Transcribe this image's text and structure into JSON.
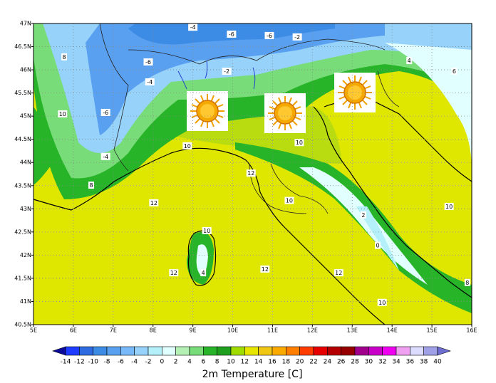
{
  "map": {
    "lonlim": [
      5,
      16
    ],
    "latlim": [
      40.5,
      47
    ],
    "grid": true,
    "lon_ticks": [
      {
        "value": 5,
        "label": "5E"
      },
      {
        "value": 6,
        "label": "6E"
      },
      {
        "value": 7,
        "label": "7E"
      },
      {
        "value": 8,
        "label": "8E"
      },
      {
        "value": 9,
        "label": "9E"
      },
      {
        "value": 10,
        "label": "10E"
      },
      {
        "value": 11,
        "label": "11E"
      },
      {
        "value": 12,
        "label": "12E"
      },
      {
        "value": 13,
        "label": "13E"
      },
      {
        "value": 14,
        "label": "14E"
      },
      {
        "value": 15,
        "label": "15E"
      },
      {
        "value": 16,
        "label": "16E"
      }
    ],
    "lat_ticks": [
      {
        "value": 40.5,
        "label": "40.5N"
      },
      {
        "value": 41,
        "label": "41N"
      },
      {
        "value": 41.5,
        "label": "41.5N"
      },
      {
        "value": 42,
        "label": "42N"
      },
      {
        "value": 42.5,
        "label": "42.5N"
      },
      {
        "value": 43,
        "label": "43N"
      },
      {
        "value": 43.5,
        "label": "43.5N"
      },
      {
        "value": 44,
        "label": "44N"
      },
      {
        "value": 44.5,
        "label": "44.5N"
      },
      {
        "value": 45,
        "label": "45N"
      },
      {
        "value": 45.5,
        "label": "45.5N"
      },
      {
        "value": 46,
        "label": "46N"
      },
      {
        "value": 46.5,
        "label": "46.5N"
      },
      {
        "value": 47,
        "label": "47N"
      }
    ],
    "contour_labels": [
      {
        "value": -4,
        "lon": 9.0,
        "lat": 46.92
      },
      {
        "value": -6,
        "lon": 9.97,
        "lat": 46.77
      },
      {
        "value": -6,
        "lon": 10.92,
        "lat": 46.74
      },
      {
        "value": -2,
        "lon": 11.62,
        "lat": 46.71
      },
      {
        "value": -2,
        "lon": 9.85,
        "lat": 45.97
      },
      {
        "value": -6,
        "lon": 7.88,
        "lat": 46.17
      },
      {
        "value": -4,
        "lon": 7.92,
        "lat": 45.74
      },
      {
        "value": -6,
        "lon": 6.81,
        "lat": 45.08
      },
      {
        "value": -4,
        "lon": 6.81,
        "lat": 44.13
      },
      {
        "value": 8,
        "lon": 5.77,
        "lat": 46.28
      },
      {
        "value": 10,
        "lon": 5.73,
        "lat": 45.05
      },
      {
        "value": 8,
        "lon": 6.45,
        "lat": 43.51
      },
      {
        "value": 10,
        "lon": 8.86,
        "lat": 44.36
      },
      {
        "value": 10,
        "lon": 11.67,
        "lat": 44.43
      },
      {
        "value": 12,
        "lon": 8.02,
        "lat": 43.13
      },
      {
        "value": 12,
        "lon": 10.46,
        "lat": 43.77
      },
      {
        "value": 10,
        "lon": 11.42,
        "lat": 43.18
      },
      {
        "value": 12,
        "lon": 10.81,
        "lat": 41.7
      },
      {
        "value": 12,
        "lon": 8.52,
        "lat": 41.62
      },
      {
        "value": 4,
        "lon": 9.26,
        "lat": 41.62
      },
      {
        "value": 10,
        "lon": 9.35,
        "lat": 42.53
      },
      {
        "value": 2,
        "lon": 13.28,
        "lat": 42.87
      },
      {
        "value": 0,
        "lon": 13.64,
        "lat": 42.21
      },
      {
        "value": 12,
        "lon": 12.66,
        "lat": 41.62
      },
      {
        "value": 10,
        "lon": 15.43,
        "lat": 43.05
      },
      {
        "value": 6,
        "lon": 15.56,
        "lat": 45.97
      },
      {
        "value": 4,
        "lon": 14.43,
        "lat": 46.2
      },
      {
        "value": 8,
        "lon": 15.89,
        "lat": 41.41
      },
      {
        "value": 10,
        "lon": 13.75,
        "lat": 40.98
      }
    ]
  },
  "colorbar": {
    "title": "2m Temperature [C]",
    "levels": [
      -14,
      -12,
      -10,
      -8,
      -6,
      -4,
      -2,
      0,
      2,
      4,
      6,
      8,
      10,
      12,
      14,
      16,
      18,
      20,
      22,
      24,
      26,
      28,
      30,
      32,
      34,
      36,
      38,
      40
    ],
    "colors": [
      "#0a0a9b",
      "#1e3cff",
      "#2e6be0",
      "#3c8ce6",
      "#5aa0f0",
      "#78b9fa",
      "#96d2fa",
      "#b4f0fa",
      "#e1ffff",
      "#b4f0b4",
      "#78dc78",
      "#28b428",
      "#1ea01e",
      "#a0dc00",
      "#e6e600",
      "#f0c814",
      "#faaa00",
      "#ff8000",
      "#ff3c00",
      "#e60000",
      "#b40000",
      "#960000",
      "#a0008c",
      "#c800c8",
      "#f000f0",
      "#f0a0f0",
      "#dcdcff",
      "#a0a0e6",
      "#6e6ed2"
    ]
  }
}
